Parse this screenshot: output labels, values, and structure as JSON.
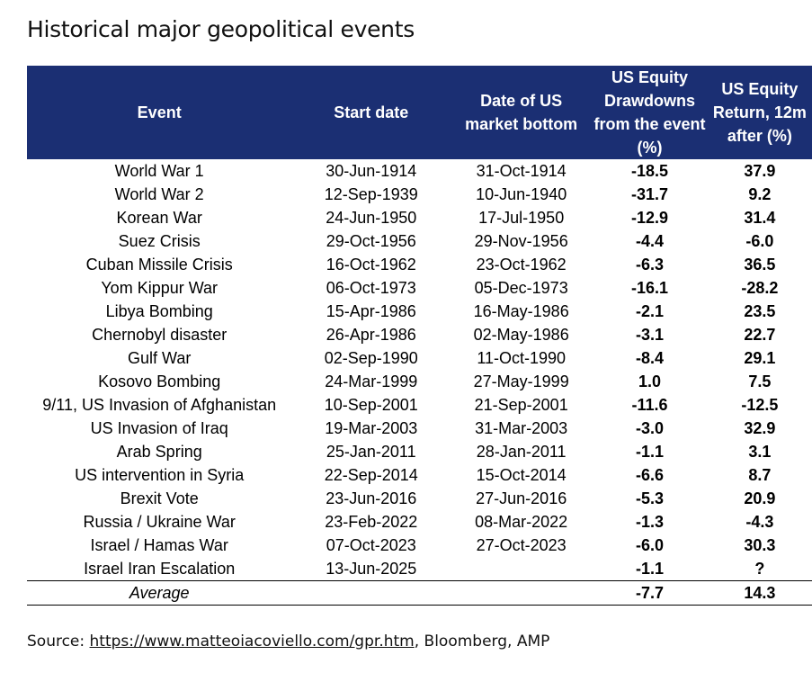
{
  "title": "Historical major geopolitical events",
  "table": {
    "headers": {
      "event": "Event",
      "start_date": "Start date",
      "market_bottom": "Date of US market bottom",
      "drawdown": "US Equity Drawdowns from the event (%)",
      "return_12m": "US Equity Return, 12m after (%)"
    },
    "rows": [
      {
        "event": "World War 1",
        "start": "30-Jun-1914",
        "bottom": "31-Oct-1914",
        "drawdown": "-18.5",
        "return": "37.9"
      },
      {
        "event": "World War 2",
        "start": "12-Sep-1939",
        "bottom": "10-Jun-1940",
        "drawdown": "-31.7",
        "return": "9.2"
      },
      {
        "event": "Korean War",
        "start": "24-Jun-1950",
        "bottom": "17-Jul-1950",
        "drawdown": "-12.9",
        "return": "31.4"
      },
      {
        "event": "Suez Crisis",
        "start": "29-Oct-1956",
        "bottom": "29-Nov-1956",
        "drawdown": "-4.4",
        "return": "-6.0"
      },
      {
        "event": "Cuban Missile Crisis",
        "start": "16-Oct-1962",
        "bottom": "23-Oct-1962",
        "drawdown": "-6.3",
        "return": "36.5"
      },
      {
        "event": "Yom Kippur War",
        "start": "06-Oct-1973",
        "bottom": "05-Dec-1973",
        "drawdown": "-16.1",
        "return": "-28.2"
      },
      {
        "event": "Libya Bombing",
        "start": "15-Apr-1986",
        "bottom": "16-May-1986",
        "drawdown": "-2.1",
        "return": "23.5"
      },
      {
        "event": "Chernobyl disaster",
        "start": "26-Apr-1986",
        "bottom": "02-May-1986",
        "drawdown": "-3.1",
        "return": "22.7"
      },
      {
        "event": "Gulf War",
        "start": "02-Sep-1990",
        "bottom": "11-Oct-1990",
        "drawdown": "-8.4",
        "return": "29.1"
      },
      {
        "event": "Kosovo Bombing",
        "start": "24-Mar-1999",
        "bottom": "27-May-1999",
        "drawdown": "1.0",
        "return": "7.5"
      },
      {
        "event": "9/11, US Invasion of Afghanistan",
        "start": "10-Sep-2001",
        "bottom": "21-Sep-2001",
        "drawdown": "-11.6",
        "return": "-12.5"
      },
      {
        "event": "US Invasion of Iraq",
        "start": "19-Mar-2003",
        "bottom": "31-Mar-2003",
        "drawdown": "-3.0",
        "return": "32.9"
      },
      {
        "event": "Arab Spring",
        "start": "25-Jan-2011",
        "bottom": "28-Jan-2011",
        "drawdown": "-1.1",
        "return": "3.1"
      },
      {
        "event": "US intervention in Syria",
        "start": "22-Sep-2014",
        "bottom": "15-Oct-2014",
        "drawdown": "-6.6",
        "return": "8.7"
      },
      {
        "event": "Brexit Vote",
        "start": "23-Jun-2016",
        "bottom": "27-Jun-2016",
        "drawdown": "-5.3",
        "return": "20.9"
      },
      {
        "event": "Russia / Ukraine War",
        "start": "23-Feb-2022",
        "bottom": "08-Mar-2022",
        "drawdown": "-1.3",
        "return": "-4.3"
      },
      {
        "event": "Israel / Hamas War",
        "start": "07-Oct-2023",
        "bottom": "27-Oct-2023",
        "drawdown": "-6.0",
        "return": "30.3"
      },
      {
        "event": "Israel Iran Escalation",
        "start": "13-Jun-2025",
        "bottom": "",
        "drawdown": "-1.1",
        "return": "?"
      }
    ],
    "average": {
      "label": "Average",
      "drawdown": "-7.7",
      "return": "14.3"
    }
  },
  "source": {
    "prefix": "Source: ",
    "link": "https://www.matteoiacoviello.com/gpr.htm",
    "suffix": ", Bloomberg, AMP"
  },
  "colors": {
    "header_background": "#1b2f73",
    "header_text": "#ffffff"
  }
}
